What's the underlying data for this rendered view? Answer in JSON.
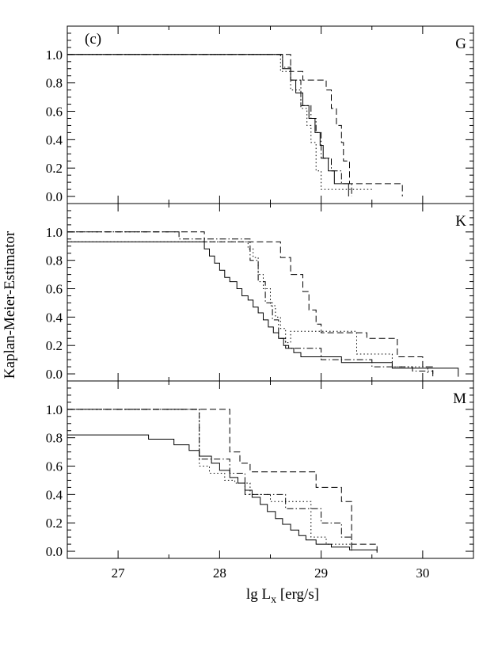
{
  "chart_data": {
    "type": "line",
    "panel_tag": "(c)",
    "xlabel": "lg L",
    "xlabel_sub": "x",
    "xlabel_unit": " [erg/s]",
    "ylabel": "Kaplan-Meier-Estimator",
    "xlim": [
      26.5,
      30.5
    ],
    "ylim": [
      -0.05,
      1.2
    ],
    "x_ticks": [
      27,
      28,
      29,
      30
    ],
    "x_tick_labels": [
      "27",
      "28",
      "29",
      "30"
    ],
    "y_ticks": [
      0.0,
      0.2,
      0.4,
      0.6,
      0.8,
      1.0
    ],
    "y_tick_labels": [
      "0.0",
      "0.2",
      "0.4",
      "0.6",
      "0.8",
      "1.0"
    ],
    "grid": false,
    "panels": [
      {
        "label": "G",
        "series": [
          {
            "style": "solid",
            "x": [
              26.5,
              28.62,
              28.62,
              28.7,
              28.7,
              28.75,
              28.75,
              28.82,
              28.82,
              28.88,
              28.88,
              28.94,
              28.94,
              28.99,
              28.99,
              29.02,
              29.02,
              29.07,
              29.07,
              29.13,
              29.13,
              29.27,
              29.27
            ],
            "y": [
              1.0,
              1.0,
              0.9,
              0.9,
              0.82,
              0.82,
              0.73,
              0.73,
              0.64,
              0.64,
              0.55,
              0.55,
              0.45,
              0.45,
              0.36,
              0.36,
              0.27,
              0.27,
              0.18,
              0.18,
              0.09,
              0.09,
              0.0
            ]
          },
          {
            "style": "dotted",
            "x": [
              26.5,
              28.6,
              28.6,
              28.7,
              28.7,
              28.8,
              28.8,
              28.86,
              28.86,
              28.9,
              28.9,
              28.95,
              28.95,
              29.0,
              29.0,
              29.5
            ],
            "y": [
              1.0,
              1.0,
              0.88,
              0.88,
              0.75,
              0.75,
              0.62,
              0.62,
              0.5,
              0.5,
              0.38,
              0.38,
              0.18,
              0.18,
              0.05,
              0.05
            ]
          },
          {
            "style": "dashed",
            "x": [
              26.5,
              28.7,
              28.7,
              28.82,
              28.82,
              29.05,
              29.05,
              29.1,
              29.1,
              29.15,
              29.15,
              29.2,
              29.2,
              29.22,
              29.22,
              29.28,
              29.28,
              29.8,
              29.8
            ],
            "y": [
              1.0,
              1.0,
              0.88,
              0.88,
              0.82,
              0.82,
              0.75,
              0.75,
              0.62,
              0.62,
              0.5,
              0.5,
              0.38,
              0.38,
              0.25,
              0.25,
              0.09,
              0.09,
              0.0
            ]
          },
          {
            "style": "dashdot",
            "x": [
              26.5,
              28.62,
              28.62,
              28.7,
              28.7,
              28.8,
              28.8,
              28.9,
              28.9,
              28.95,
              28.95,
              29.0,
              29.0,
              29.1,
              29.1,
              29.2,
              29.2,
              29.3,
              29.3
            ],
            "y": [
              1.0,
              1.0,
              0.91,
              0.91,
              0.82,
              0.82,
              0.64,
              0.64,
              0.55,
              0.55,
              0.45,
              0.45,
              0.27,
              0.27,
              0.18,
              0.18,
              0.09,
              0.09,
              0.0
            ]
          }
        ]
      },
      {
        "label": "K",
        "series": [
          {
            "style": "solid",
            "x": [
              26.5,
              27.85,
              27.85,
              27.9,
              27.9,
              27.95,
              27.95,
              28.0,
              28.0,
              28.05,
              28.05,
              28.1,
              28.1,
              28.17,
              28.17,
              28.22,
              28.22,
              28.28,
              28.28,
              28.33,
              28.33,
              28.38,
              28.38,
              28.43,
              28.43,
              28.48,
              28.48,
              28.53,
              28.53,
              28.58,
              28.58,
              28.63,
              28.63,
              28.68,
              28.68,
              28.73,
              28.73,
              28.8,
              28.8,
              29.2,
              29.2,
              29.7,
              29.7,
              30.35,
              30.35
            ],
            "y": [
              0.93,
              0.93,
              0.88,
              0.88,
              0.83,
              0.83,
              0.78,
              0.78,
              0.73,
              0.73,
              0.68,
              0.68,
              0.65,
              0.65,
              0.6,
              0.6,
              0.55,
              0.55,
              0.52,
              0.52,
              0.47,
              0.47,
              0.43,
              0.43,
              0.38,
              0.38,
              0.33,
              0.33,
              0.29,
              0.29,
              0.25,
              0.25,
              0.2,
              0.2,
              0.18,
              0.18,
              0.15,
              0.15,
              0.12,
              0.12,
              0.08,
              0.08,
              0.04,
              0.04,
              -0.02
            ]
          },
          {
            "style": "dotted",
            "x": [
              26.5,
              28.28,
              28.28,
              28.33,
              28.33,
              28.38,
              28.38,
              28.43,
              28.43,
              28.5,
              28.5,
              28.55,
              28.55,
              28.6,
              28.6,
              28.65,
              28.65,
              28.7,
              28.7,
              29.35,
              29.35,
              29.7,
              29.7,
              30.05,
              30.05
            ],
            "y": [
              0.93,
              0.93,
              0.88,
              0.88,
              0.82,
              0.82,
              0.7,
              0.7,
              0.6,
              0.6,
              0.48,
              0.48,
              0.4,
              0.4,
              0.32,
              0.32,
              0.22,
              0.22,
              0.3,
              0.3,
              0.14,
              0.14,
              0.05,
              0.05,
              0.0
            ]
          },
          {
            "style": "dashed",
            "x": [
              26.5,
              27.85,
              27.85,
              28.6,
              28.6,
              28.7,
              28.7,
              28.82,
              28.82,
              28.88,
              28.88,
              28.95,
              28.95,
              29.0,
              29.0,
              29.45,
              29.45,
              29.75,
              29.75,
              30.0,
              30.0,
              30.1,
              30.1
            ],
            "y": [
              1.0,
              1.0,
              0.93,
              0.93,
              0.82,
              0.82,
              0.7,
              0.7,
              0.58,
              0.58,
              0.45,
              0.45,
              0.35,
              0.35,
              0.29,
              0.29,
              0.25,
              0.25,
              0.12,
              0.12,
              0.05,
              0.05,
              -0.02
            ]
          },
          {
            "style": "dashdot",
            "x": [
              26.5,
              27.6,
              27.6,
              28.3,
              28.3,
              28.38,
              28.38,
              28.45,
              28.45,
              28.52,
              28.52,
              28.58,
              28.58,
              28.65,
              28.65,
              29.0,
              29.0,
              29.5,
              29.5,
              29.9,
              29.9,
              30.1,
              30.1
            ],
            "y": [
              1.0,
              1.0,
              0.95,
              0.95,
              0.8,
              0.8,
              0.65,
              0.65,
              0.5,
              0.5,
              0.38,
              0.38,
              0.25,
              0.25,
              0.18,
              0.18,
              0.1,
              0.1,
              0.05,
              0.05,
              0.02,
              0.02,
              0.0
            ]
          }
        ]
      },
      {
        "label": "M",
        "series": [
          {
            "style": "solid",
            "x": [
              26.5,
              27.3,
              27.3,
              27.55,
              27.55,
              27.7,
              27.7,
              27.8,
              27.8,
              27.92,
              27.92,
              28.0,
              28.0,
              28.1,
              28.1,
              28.18,
              28.18,
              28.25,
              28.25,
              28.32,
              28.32,
              28.4,
              28.4,
              28.47,
              28.47,
              28.55,
              28.55,
              28.62,
              28.62,
              28.7,
              28.7,
              28.78,
              28.78,
              28.85,
              28.85,
              28.95,
              28.95,
              29.1,
              29.1,
              29.28,
              29.28,
              29.55,
              29.55
            ],
            "y": [
              0.82,
              0.82,
              0.79,
              0.79,
              0.75,
              0.75,
              0.71,
              0.71,
              0.67,
              0.67,
              0.62,
              0.62,
              0.57,
              0.57,
              0.52,
              0.52,
              0.48,
              0.48,
              0.43,
              0.43,
              0.38,
              0.38,
              0.33,
              0.33,
              0.28,
              0.28,
              0.23,
              0.23,
              0.19,
              0.19,
              0.15,
              0.15,
              0.11,
              0.11,
              0.08,
              0.08,
              0.05,
              0.05,
              0.03,
              0.03,
              0.01,
              0.01,
              -0.01
            ]
          },
          {
            "style": "dotted",
            "x": [
              26.5,
              27.8,
              27.8,
              27.9,
              27.9,
              28.05,
              28.05,
              28.15,
              28.15,
              28.3,
              28.3,
              28.5,
              28.5,
              28.9,
              28.9,
              29.05,
              29.05,
              29.3,
              29.3
            ],
            "y": [
              1.0,
              1.0,
              0.6,
              0.6,
              0.55,
              0.55,
              0.5,
              0.5,
              0.48,
              0.48,
              0.4,
              0.4,
              0.35,
              0.35,
              0.1,
              0.1,
              0.05,
              0.05,
              0.0
            ]
          },
          {
            "style": "dashed",
            "x": [
              26.5,
              28.1,
              28.1,
              28.2,
              28.2,
              28.3,
              28.3,
              28.95,
              28.95,
              29.2,
              29.2,
              29.3,
              29.3,
              29.55,
              29.55
            ],
            "y": [
              1.0,
              1.0,
              0.7,
              0.7,
              0.62,
              0.62,
              0.56,
              0.56,
              0.45,
              0.45,
              0.35,
              0.35,
              0.05,
              0.05,
              0.0
            ]
          },
          {
            "style": "dashdot",
            "x": [
              26.5,
              27.8,
              27.8,
              28.1,
              28.1,
              28.25,
              28.25,
              28.65,
              28.65,
              29.0,
              29.0,
              29.2,
              29.2,
              29.3,
              29.3
            ],
            "y": [
              1.0,
              1.0,
              0.65,
              0.65,
              0.55,
              0.55,
              0.4,
              0.4,
              0.3,
              0.3,
              0.2,
              0.2,
              0.1,
              0.1,
              0.0
            ]
          }
        ]
      }
    ]
  }
}
